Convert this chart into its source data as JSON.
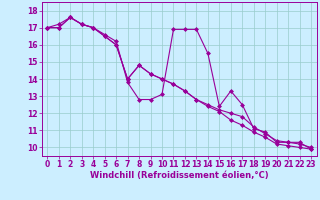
{
  "xlabel": "Windchill (Refroidissement éolien,°C)",
  "bg_color": "#cceeff",
  "line_color": "#990099",
  "grid_color": "#99cccc",
  "x": [
    0,
    1,
    2,
    3,
    4,
    5,
    6,
    7,
    8,
    9,
    10,
    11,
    12,
    13,
    14,
    15,
    16,
    17,
    18,
    19,
    20,
    21,
    22,
    23
  ],
  "line1": [
    17.0,
    17.2,
    17.6,
    17.2,
    17.0,
    16.6,
    16.2,
    13.8,
    12.8,
    12.8,
    13.1,
    16.9,
    16.9,
    16.9,
    15.5,
    12.4,
    13.3,
    12.5,
    11.1,
    10.9,
    10.3,
    10.3,
    10.3,
    9.9
  ],
  "line2": [
    17.0,
    17.0,
    17.6,
    17.2,
    17.0,
    16.5,
    16.0,
    14.0,
    14.8,
    14.3,
    14.0,
    13.7,
    13.3,
    12.8,
    12.5,
    12.2,
    12.0,
    11.8,
    11.2,
    10.8,
    10.4,
    10.3,
    10.2,
    10.0
  ],
  "line3": [
    17.0,
    17.0,
    17.6,
    17.2,
    17.0,
    16.5,
    16.0,
    14.0,
    14.8,
    14.3,
    14.0,
    13.7,
    13.3,
    12.8,
    12.4,
    12.1,
    11.6,
    11.3,
    10.9,
    10.6,
    10.2,
    10.1,
    10.0,
    9.9
  ],
  "ylim": [
    9.5,
    18.5
  ],
  "yticks": [
    10,
    11,
    12,
    13,
    14,
    15,
    16,
    17,
    18
  ],
  "xticks": [
    0,
    1,
    2,
    3,
    4,
    5,
    6,
    7,
    8,
    9,
    10,
    11,
    12,
    13,
    14,
    15,
    16,
    17,
    18,
    19,
    20,
    21,
    22,
    23
  ],
  "marker": "D",
  "markersize": 2.0,
  "linewidth": 0.8,
  "tick_fontsize": 5.5,
  "xlabel_fontsize": 6.0
}
